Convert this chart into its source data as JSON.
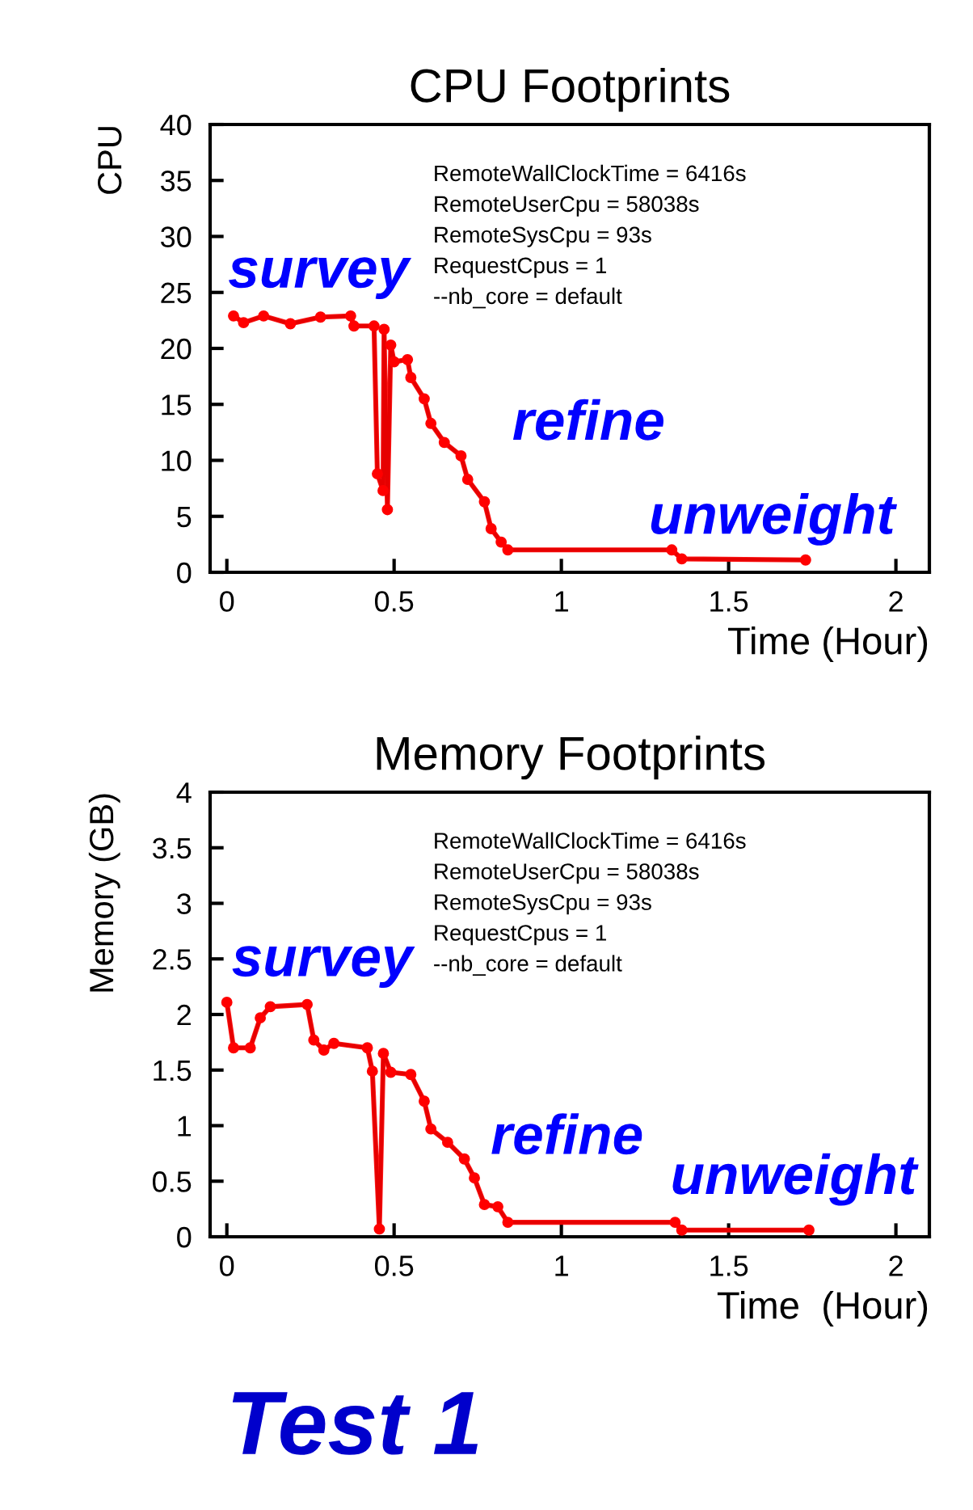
{
  "chart_data": [
    {
      "type": "line",
      "title": "CPU Footprints",
      "xlabel": "Time (Hour)",
      "ylabel": "CPU",
      "xlim": [
        -0.05,
        2.1
      ],
      "xticks": [
        0,
        0.5,
        1,
        1.5,
        2
      ],
      "ylim": [
        0,
        40
      ],
      "yticks": [
        0,
        5,
        10,
        15,
        20,
        25,
        30,
        35,
        40
      ],
      "grid": false,
      "marker": "circle",
      "line_style": "solid",
      "series": [
        {
          "color": "#ff0000",
          "x": [
            0.02,
            0.05,
            0.11,
            0.19,
            0.28,
            0.37,
            0.38,
            0.44,
            0.45,
            0.467,
            0.47,
            0.48,
            0.49,
            0.5,
            0.54,
            0.55,
            0.59,
            0.61,
            0.65,
            0.7,
            0.72,
            0.77,
            0.79,
            0.82,
            0.84,
            1.33,
            1.36,
            1.73
          ],
          "values": [
            22.9,
            22.3,
            22.9,
            22.2,
            22.8,
            22.9,
            22,
            22,
            8.8,
            7.3,
            21.7,
            5.6,
            20.3,
            18.8,
            19,
            17.4,
            15.5,
            13.3,
            11.6,
            10.4,
            8.3,
            6.3,
            3.9,
            2.7,
            2,
            2,
            1.2,
            1.1
          ]
        }
      ],
      "annotations": [
        "RemoteWallClockTime = 6416s\nRemoteUserCpu = 58038s\nRemoteSysCpu = 93s\nRequestCpus = 1\n--nb_core = default",
        "survey",
        "refine",
        "unweight"
      ]
    },
    {
      "type": "line",
      "title": "Memory Footprints",
      "xlabel": "Time  (Hour)",
      "ylabel": "Memory (GB)",
      "xlim": [
        -0.05,
        2.1
      ],
      "xticks": [
        0,
        0.5,
        1,
        1.5,
        2
      ],
      "ylim": [
        0,
        4
      ],
      "yticks": [
        0,
        0.5,
        1,
        1.5,
        2,
        2.5,
        3,
        3.5,
        4
      ],
      "grid": false,
      "marker": "circle",
      "line_style": "solid",
      "series": [
        {
          "color": "#ff0000",
          "x": [
            0,
            0.02,
            0.07,
            0.1,
            0.13,
            0.24,
            0.26,
            0.29,
            0.32,
            0.42,
            0.435,
            0.456,
            0.468,
            0.49,
            0.55,
            0.59,
            0.61,
            0.66,
            0.71,
            0.74,
            0.77,
            0.81,
            0.84,
            1.34,
            1.36,
            1.74
          ],
          "values": [
            2.11,
            1.7,
            1.7,
            1.97,
            2.07,
            2.09,
            1.77,
            1.68,
            1.74,
            1.7,
            1.49,
            0.07,
            1.65,
            1.48,
            1.46,
            1.22,
            0.97,
            0.85,
            0.7,
            0.53,
            0.29,
            0.27,
            0.13,
            0.13,
            0.06,
            0.06
          ]
        }
      ],
      "annotations": [
        "RemoteWallClockTime = 6416s\nRemoteUserCpu = 58038s\nRemoteSysCpu = 93s\nRequestCpus = 1\n--nb_core = default",
        "survey",
        "refine",
        "unweight",
        "Test 1"
      ]
    }
  ]
}
